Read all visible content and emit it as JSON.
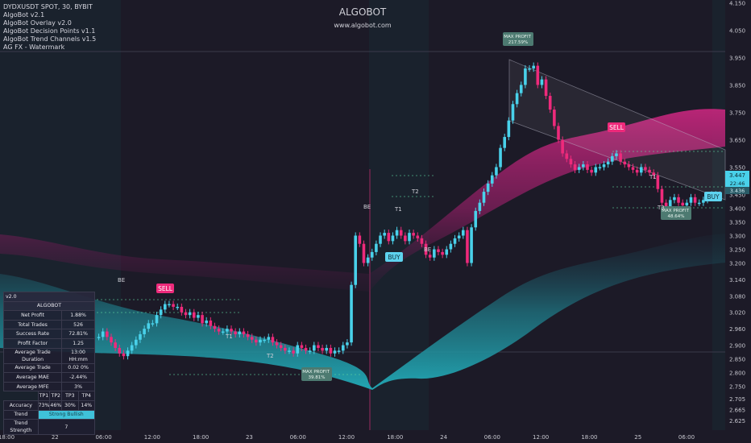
{
  "header": {
    "symbol_line": "DYDXUSDT SPOT, 30, BYBIT",
    "indicators": [
      "AlgoBot v2.1",
      "AlgoBot Overlay v2.0",
      "AlgoBot Decision Points v1.1",
      "AlgoBot Trend Channels v1.5",
      "AG FX - Watermark"
    ]
  },
  "watermark": {
    "title": "ALGOBOT",
    "url": "www.algobot.com"
  },
  "stats": {
    "version": "v2.0",
    "title": "ALGOBOT",
    "rows": [
      {
        "label": "Net Profit",
        "value": "1.88%"
      },
      {
        "label": "Total Trades",
        "value": "526"
      },
      {
        "label": "Success Rate",
        "value": "72.81%"
      },
      {
        "label": "Profit Factor",
        "value": "1.25"
      },
      {
        "label": "Average Trade Duration",
        "value": "13:00 HH:mm"
      },
      {
        "label": "Average Trade",
        "value": "0.02 0%"
      },
      {
        "label": "Average MAE",
        "value": "-2.44%"
      },
      {
        "label": "Average MFE",
        "value": "3%"
      }
    ],
    "tp_headers": [
      "TP1",
      "TP2",
      "TP3",
      "TP4"
    ],
    "accuracy_label": "Accuracy",
    "accuracy": [
      "73%",
      "46%",
      "30%",
      "14%"
    ],
    "trend_label": "Trend",
    "trend_value": "Strong Bullish",
    "trend_strength_label": "Trend Strength",
    "trend_strength": "7"
  },
  "chart_data": {
    "type": "candlestick",
    "symbol": "DYDXUSDT",
    "exchange": "BYBIT",
    "timeframe": "30",
    "ylim": [
      2.59,
      4.16
    ],
    "y_ticks": [
      "4.150",
      "4.050",
      "3.950",
      "3.850",
      "3.750",
      "3.650",
      "3.550",
      "3.450",
      "3.400",
      "3.350",
      "3.300",
      "3.250",
      "3.200",
      "3.140",
      "3.080",
      "3.020",
      "2.960",
      "2.900",
      "2.850",
      "2.800",
      "2.750",
      "2.705",
      "2.665",
      "2.625"
    ],
    "x_ticks": [
      "18:00",
      "22",
      "06:00",
      "12:00",
      "18:00",
      "23",
      "06:00",
      "12:00",
      "18:00",
      "24",
      "06:00",
      "12:00",
      "18:00",
      "25",
      "06:00"
    ],
    "last_price": "3.447",
    "countdown": "22:46",
    "secondary_price": "3.436",
    "closes": [
      2.93,
      2.95,
      2.93,
      2.91,
      2.89,
      2.87,
      2.86,
      2.88,
      2.9,
      2.92,
      2.94,
      2.96,
      2.98,
      2.98,
      3.01,
      3.03,
      3.05,
      3.05,
      3.04,
      3.04,
      3.02,
      3.01,
      3.02,
      3.0,
      3.01,
      2.98,
      2.99,
      2.97,
      2.96,
      2.95,
      2.95,
      2.96,
      2.95,
      2.94,
      2.95,
      2.94,
      2.93,
      2.92,
      2.91,
      2.92,
      2.92,
      2.93,
      2.91,
      2.9,
      2.89,
      2.88,
      2.88,
      2.87,
      2.9,
      2.89,
      2.88,
      2.88,
      2.9,
      2.89,
      2.88,
      2.89,
      2.87,
      2.88,
      2.88,
      2.9,
      2.91,
      3.12,
      3.3,
      3.27,
      3.2,
      3.22,
      3.24,
      3.27,
      3.3,
      3.31,
      3.28,
      3.3,
      3.32,
      3.3,
      3.28,
      3.31,
      3.3,
      3.29,
      3.27,
      3.23,
      3.22,
      3.25,
      3.24,
      3.23,
      3.25,
      3.27,
      3.29,
      3.3,
      3.32,
      3.2,
      3.33,
      3.39,
      3.42,
      3.46,
      3.49,
      3.52,
      3.55,
      3.62,
      3.66,
      3.72,
      3.78,
      3.82,
      3.85,
      3.91,
      3.91,
      3.92,
      3.85,
      3.87,
      3.81,
      3.76,
      3.7,
      3.65,
      3.6,
      3.58,
      3.56,
      3.54,
      3.55,
      3.56,
      3.54,
      3.53,
      3.55,
      3.55,
      3.56,
      3.57,
      3.59,
      3.6,
      3.57,
      3.56,
      3.55,
      3.54,
      3.53,
      3.55,
      3.54,
      3.53,
      3.52,
      3.47,
      3.42,
      3.4,
      3.43,
      3.44,
      3.42,
      3.41,
      3.42,
      3.44,
      3.42,
      3.42,
      3.43,
      3.44,
      3.45,
      3.45,
      3.44
    ],
    "annotations": [
      {
        "text": "SELL",
        "type": "sell-signal"
      },
      {
        "text": "BUY",
        "type": "buy-signal"
      },
      {
        "text": "SELL",
        "type": "sell-signal"
      },
      {
        "text": "BUY",
        "type": "buy-signal"
      },
      {
        "text": "MAX PROFIT 39.81%",
        "type": "max-profit"
      },
      {
        "text": "MAX PROFIT 217.59%",
        "type": "max-profit"
      },
      {
        "text": "MAX PROFIT 48.64%",
        "type": "max-profit"
      },
      {
        "text": "BE",
        "type": "label"
      },
      {
        "text": "BE",
        "type": "label"
      },
      {
        "text": "BE",
        "type": "label"
      },
      {
        "text": "T1",
        "type": "label"
      },
      {
        "text": "T2",
        "type": "label"
      },
      {
        "text": "T1",
        "type": "label"
      },
      {
        "text": "T2",
        "type": "label"
      },
      {
        "text": "T1",
        "type": "label"
      },
      {
        "text": "T3",
        "type": "label"
      }
    ]
  },
  "colors": {
    "background": "#1c1a27",
    "bull": "#49d1ea",
    "bear": "#ee2a7b",
    "upper_band": "#a3246b",
    "lower_band": "#1d7b86",
    "axis_text": "#c8c8d0"
  }
}
